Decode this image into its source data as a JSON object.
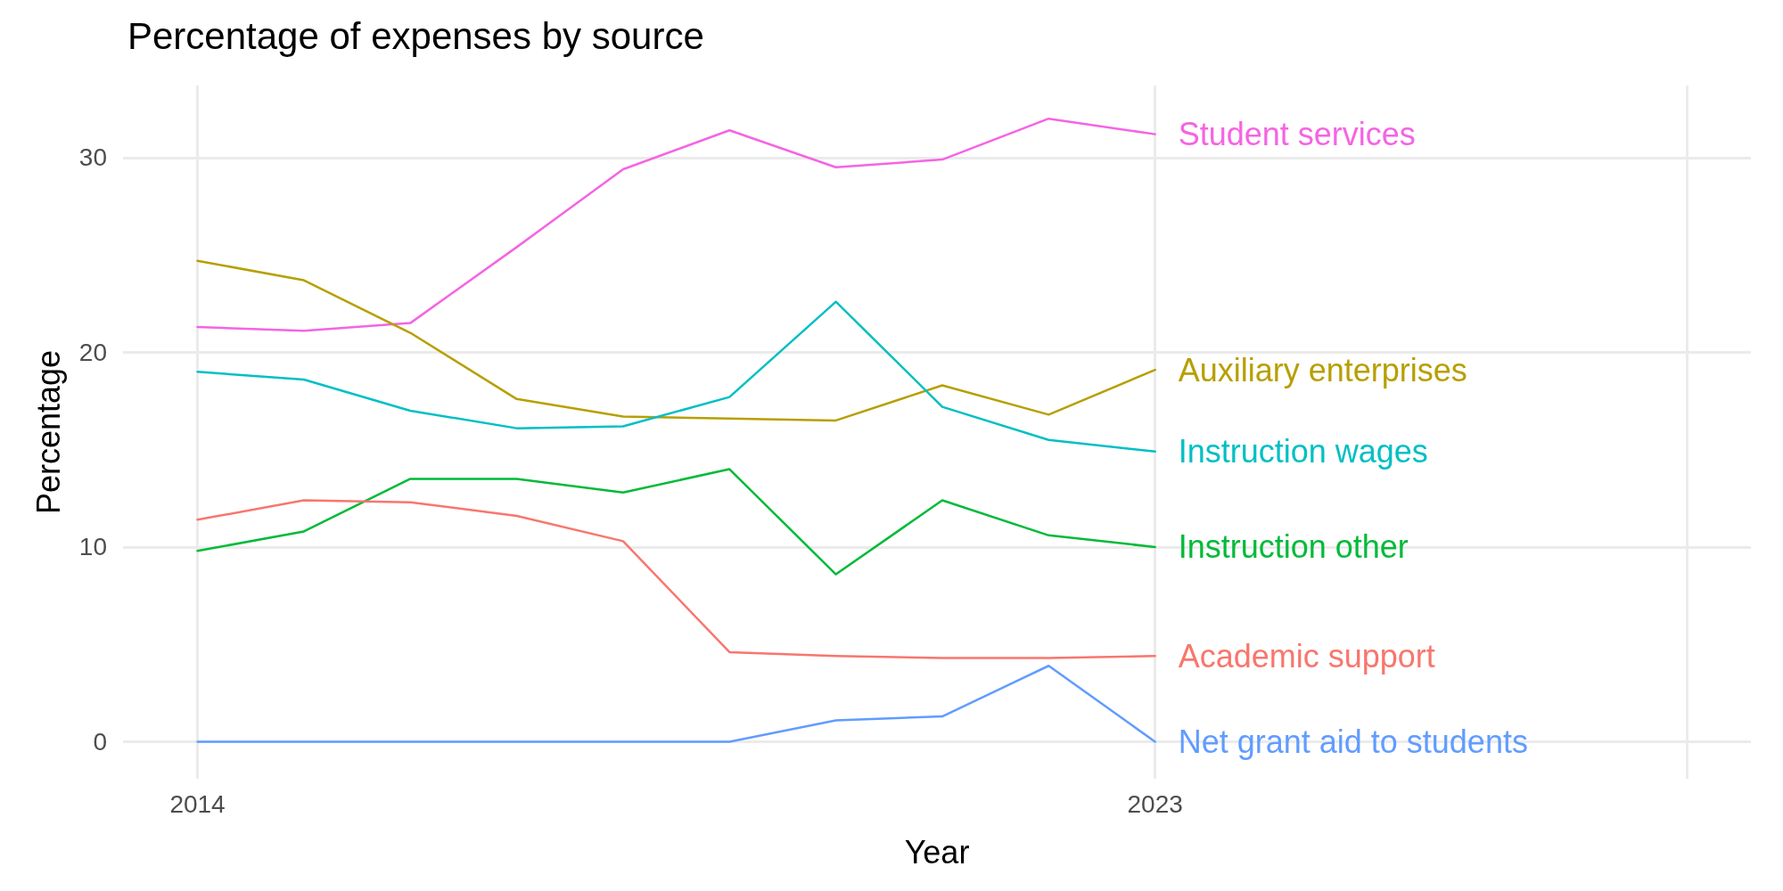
{
  "chart_data": {
    "type": "line",
    "title": "Percentage of expenses by source",
    "xlabel": "Year",
    "ylabel": "Percentage",
    "x": [
      2014,
      2015,
      2016,
      2017,
      2018,
      2019,
      2020,
      2021,
      2022,
      2023
    ],
    "series": [
      {
        "name": "Student services",
        "color": "#f564e3",
        "values": [
          21.3,
          21.1,
          21.5,
          25.4,
          29.4,
          31.4,
          29.5,
          29.9,
          32.0,
          31.2
        ]
      },
      {
        "name": "Auxiliary enterprises",
        "color": "#b79f00",
        "values": [
          24.7,
          23.7,
          21.0,
          17.6,
          16.7,
          16.6,
          16.5,
          18.3,
          16.8,
          19.1
        ]
      },
      {
        "name": "Instruction wages",
        "color": "#00bfc4",
        "values": [
          19.0,
          18.6,
          17.0,
          16.1,
          16.2,
          17.7,
          22.6,
          17.2,
          15.5,
          14.9
        ]
      },
      {
        "name": "Instruction other",
        "color": "#00ba38",
        "values": [
          9.8,
          10.8,
          13.5,
          13.5,
          12.8,
          14.0,
          8.6,
          12.4,
          10.6,
          10.0
        ]
      },
      {
        "name": "Academic support",
        "color": "#f8766d",
        "values": [
          11.4,
          12.4,
          12.3,
          11.6,
          10.3,
          4.6,
          4.4,
          4.3,
          4.3,
          4.4
        ]
      },
      {
        "name": "Net grant aid to students",
        "color": "#619cff",
        "values": [
          0,
          0,
          0,
          0,
          0,
          0,
          1.1,
          1.3,
          3.9,
          0
        ]
      }
    ],
    "xlim": [
      2013.3,
      2028.6
    ],
    "xticks": [
      2014,
      2023,
      {
        "value": 2028,
        "label": null
      }
    ],
    "ylim": [
      -1.9,
      33.7
    ],
    "yticks": [
      0,
      10,
      20,
      30
    ],
    "grid": true,
    "legend": false,
    "marker": "none",
    "line_style": "solid"
  }
}
